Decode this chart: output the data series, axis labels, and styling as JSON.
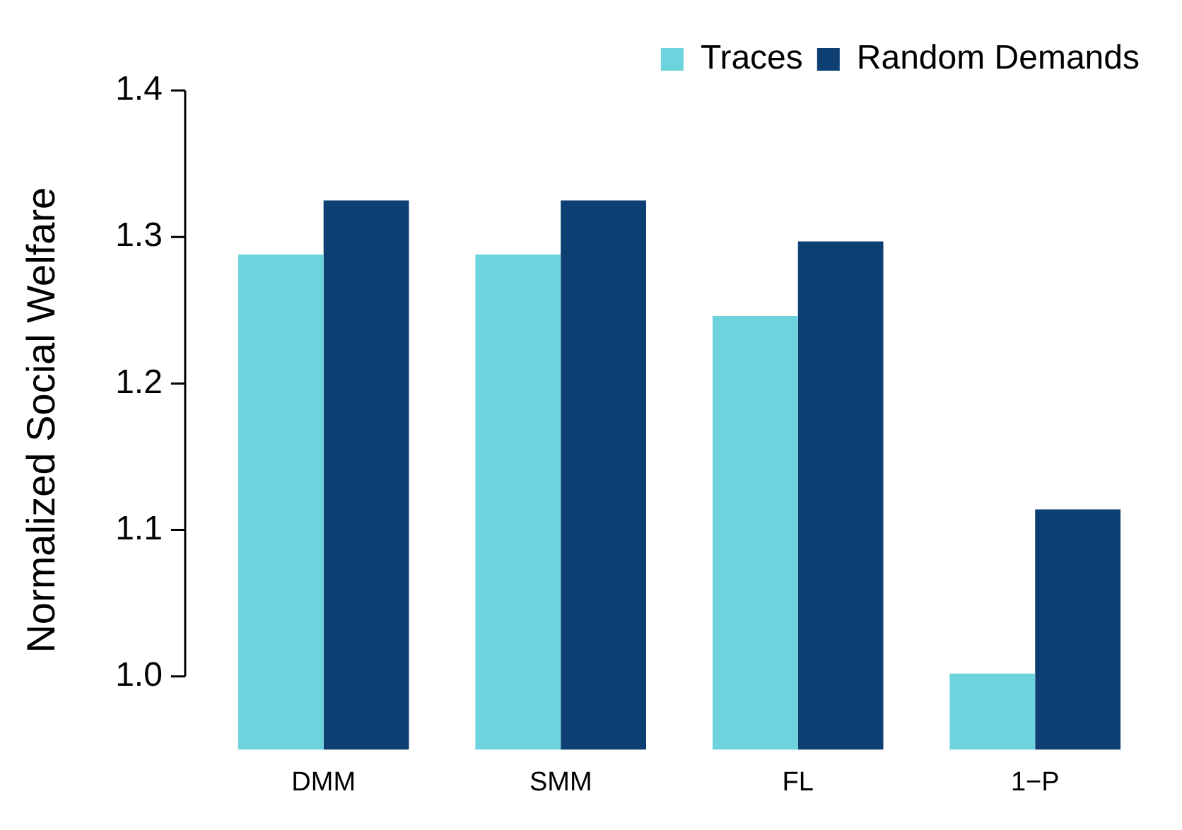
{
  "chart_data": {
    "type": "bar",
    "ylabel": "Normalized Social Welfare",
    "categories": [
      "DMM",
      "SMM",
      "FL",
      "1−P"
    ],
    "series": [
      {
        "name": "Traces",
        "color": "#6dd3dc",
        "values": [
          1.288,
          1.288,
          1.246,
          1.002
        ]
      },
      {
        "name": "Random Demands",
        "color": "#0d3f73",
        "values": [
          1.325,
          1.325,
          1.297,
          1.114
        ]
      }
    ],
    "ylim": [
      0.95,
      1.4
    ],
    "yticks": [
      {
        "value": 1.0,
        "label": "1.0"
      },
      1.1,
      1.2,
      1.3,
      1.4
    ],
    "grid": false,
    "legend": "top right"
  }
}
